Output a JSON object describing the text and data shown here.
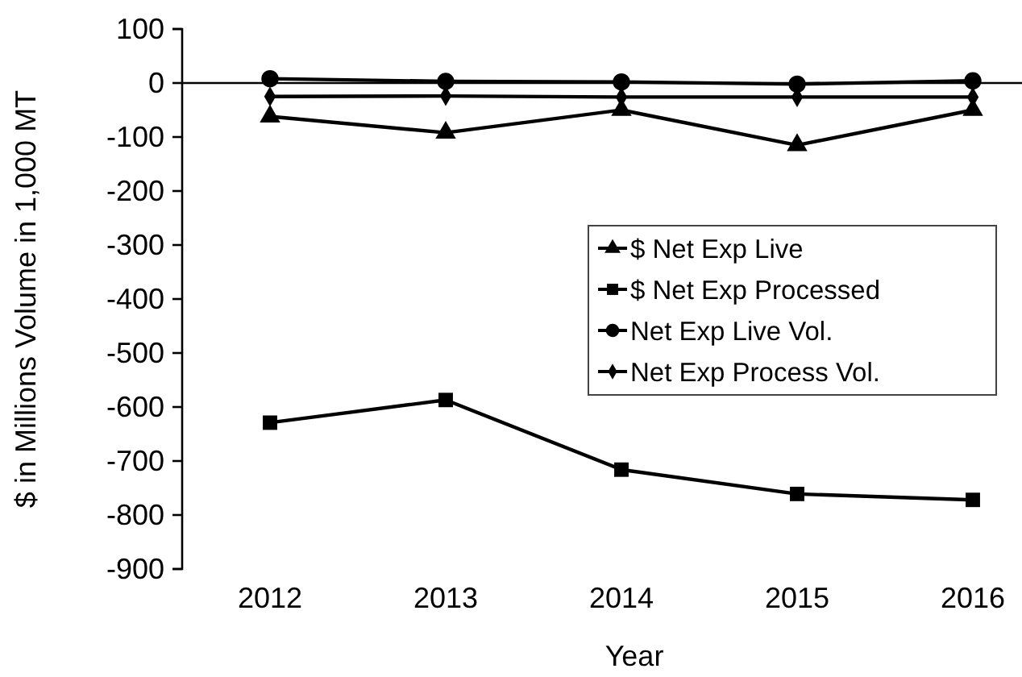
{
  "chart_data": {
    "type": "line",
    "xlabel": "Year",
    "ylabel": "$ in Millions  Volume in 1,000 MT",
    "categories": [
      "2012",
      "2013",
      "2014",
      "2015",
      "2016"
    ],
    "series": [
      {
        "name": "$ Net Exp Live",
        "color": "#000000",
        "marker": "triangle",
        "values": [
          -62,
          -92,
          -50,
          -115,
          -50
        ]
      },
      {
        "name": "$ Net Exp Processed",
        "color": "#000000",
        "marker": "square",
        "values": [
          -629,
          -587,
          -716,
          -761,
          -772
        ]
      },
      {
        "name": "Net Exp Live Vol.",
        "color": "#000000",
        "marker": "circle",
        "values": [
          8,
          3,
          2,
          -2,
          4
        ]
      },
      {
        "name": "Net Exp Process Vol.",
        "color": "#000000",
        "marker": "diamond",
        "values": [
          -25,
          -24,
          -26,
          -26,
          -26
        ]
      }
    ],
    "ylim": [
      -900,
      100
    ],
    "yticks": [
      -900,
      -800,
      -700,
      -600,
      -500,
      -400,
      -300,
      -200,
      -100,
      0,
      100
    ],
    "legend": "right"
  }
}
